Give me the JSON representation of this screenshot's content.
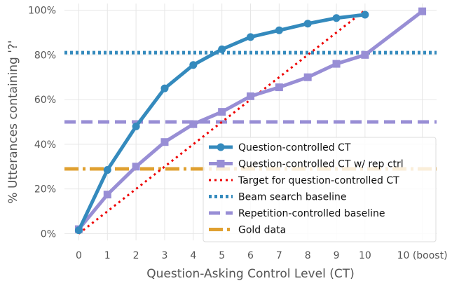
{
  "chart_data": {
    "type": "line",
    "xlabel": "Question-Asking Control Level (CT)",
    "ylabel": "% Utterances containing '?'",
    "categories": [
      "0",
      "1",
      "2",
      "3",
      "4",
      "5",
      "6",
      "7",
      "8",
      "9",
      "10",
      "10 (boost)"
    ],
    "x_positions": [
      0,
      1,
      2,
      3,
      4,
      5,
      6,
      7,
      8,
      9,
      10,
      12
    ],
    "ylim": [
      -3,
      103
    ],
    "yticks": [
      0,
      20,
      40,
      60,
      80,
      100
    ],
    "ytick_labels": [
      "0%",
      "20%",
      "40%",
      "60%",
      "80%",
      "100%"
    ],
    "grid": true,
    "legend_position": "lower-right",
    "series": [
      {
        "name": "Question-controlled CT",
        "style": "solid",
        "marker": "circle",
        "color": "#348abd",
        "x": [
          0,
          1,
          2,
          3,
          4,
          5,
          6,
          7,
          8,
          9,
          10
        ],
        "values": [
          1.5,
          28.5,
          48,
          65,
          75.5,
          82.5,
          88,
          91,
          94,
          96.5,
          98
        ]
      },
      {
        "name": "Question-controlled CT w/ rep ctrl",
        "style": "solid",
        "marker": "square",
        "color": "#988ed5",
        "x": [
          0,
          1,
          2,
          3,
          4,
          5,
          6,
          7,
          8,
          9,
          10,
          12
        ],
        "values": [
          2,
          17.5,
          30,
          41,
          49,
          54.5,
          61.5,
          65.5,
          70,
          76,
          80,
          99.5
        ]
      },
      {
        "name": "Target for question-controlled CT",
        "style": "dotted",
        "marker": "none",
        "color": "#ee0000",
        "x": [
          0,
          10
        ],
        "values": [
          0,
          100
        ]
      }
    ],
    "reference_lines": [
      {
        "name": "Beam search baseline",
        "style": "dotted",
        "color": "#348abd",
        "value": 81
      },
      {
        "name": "Repetition-controlled baseline",
        "style": "dashed",
        "color": "#988ed5",
        "value": 50
      },
      {
        "name": "Gold data",
        "style": "dashdot",
        "color": "#e0a030",
        "value": 29
      }
    ]
  }
}
